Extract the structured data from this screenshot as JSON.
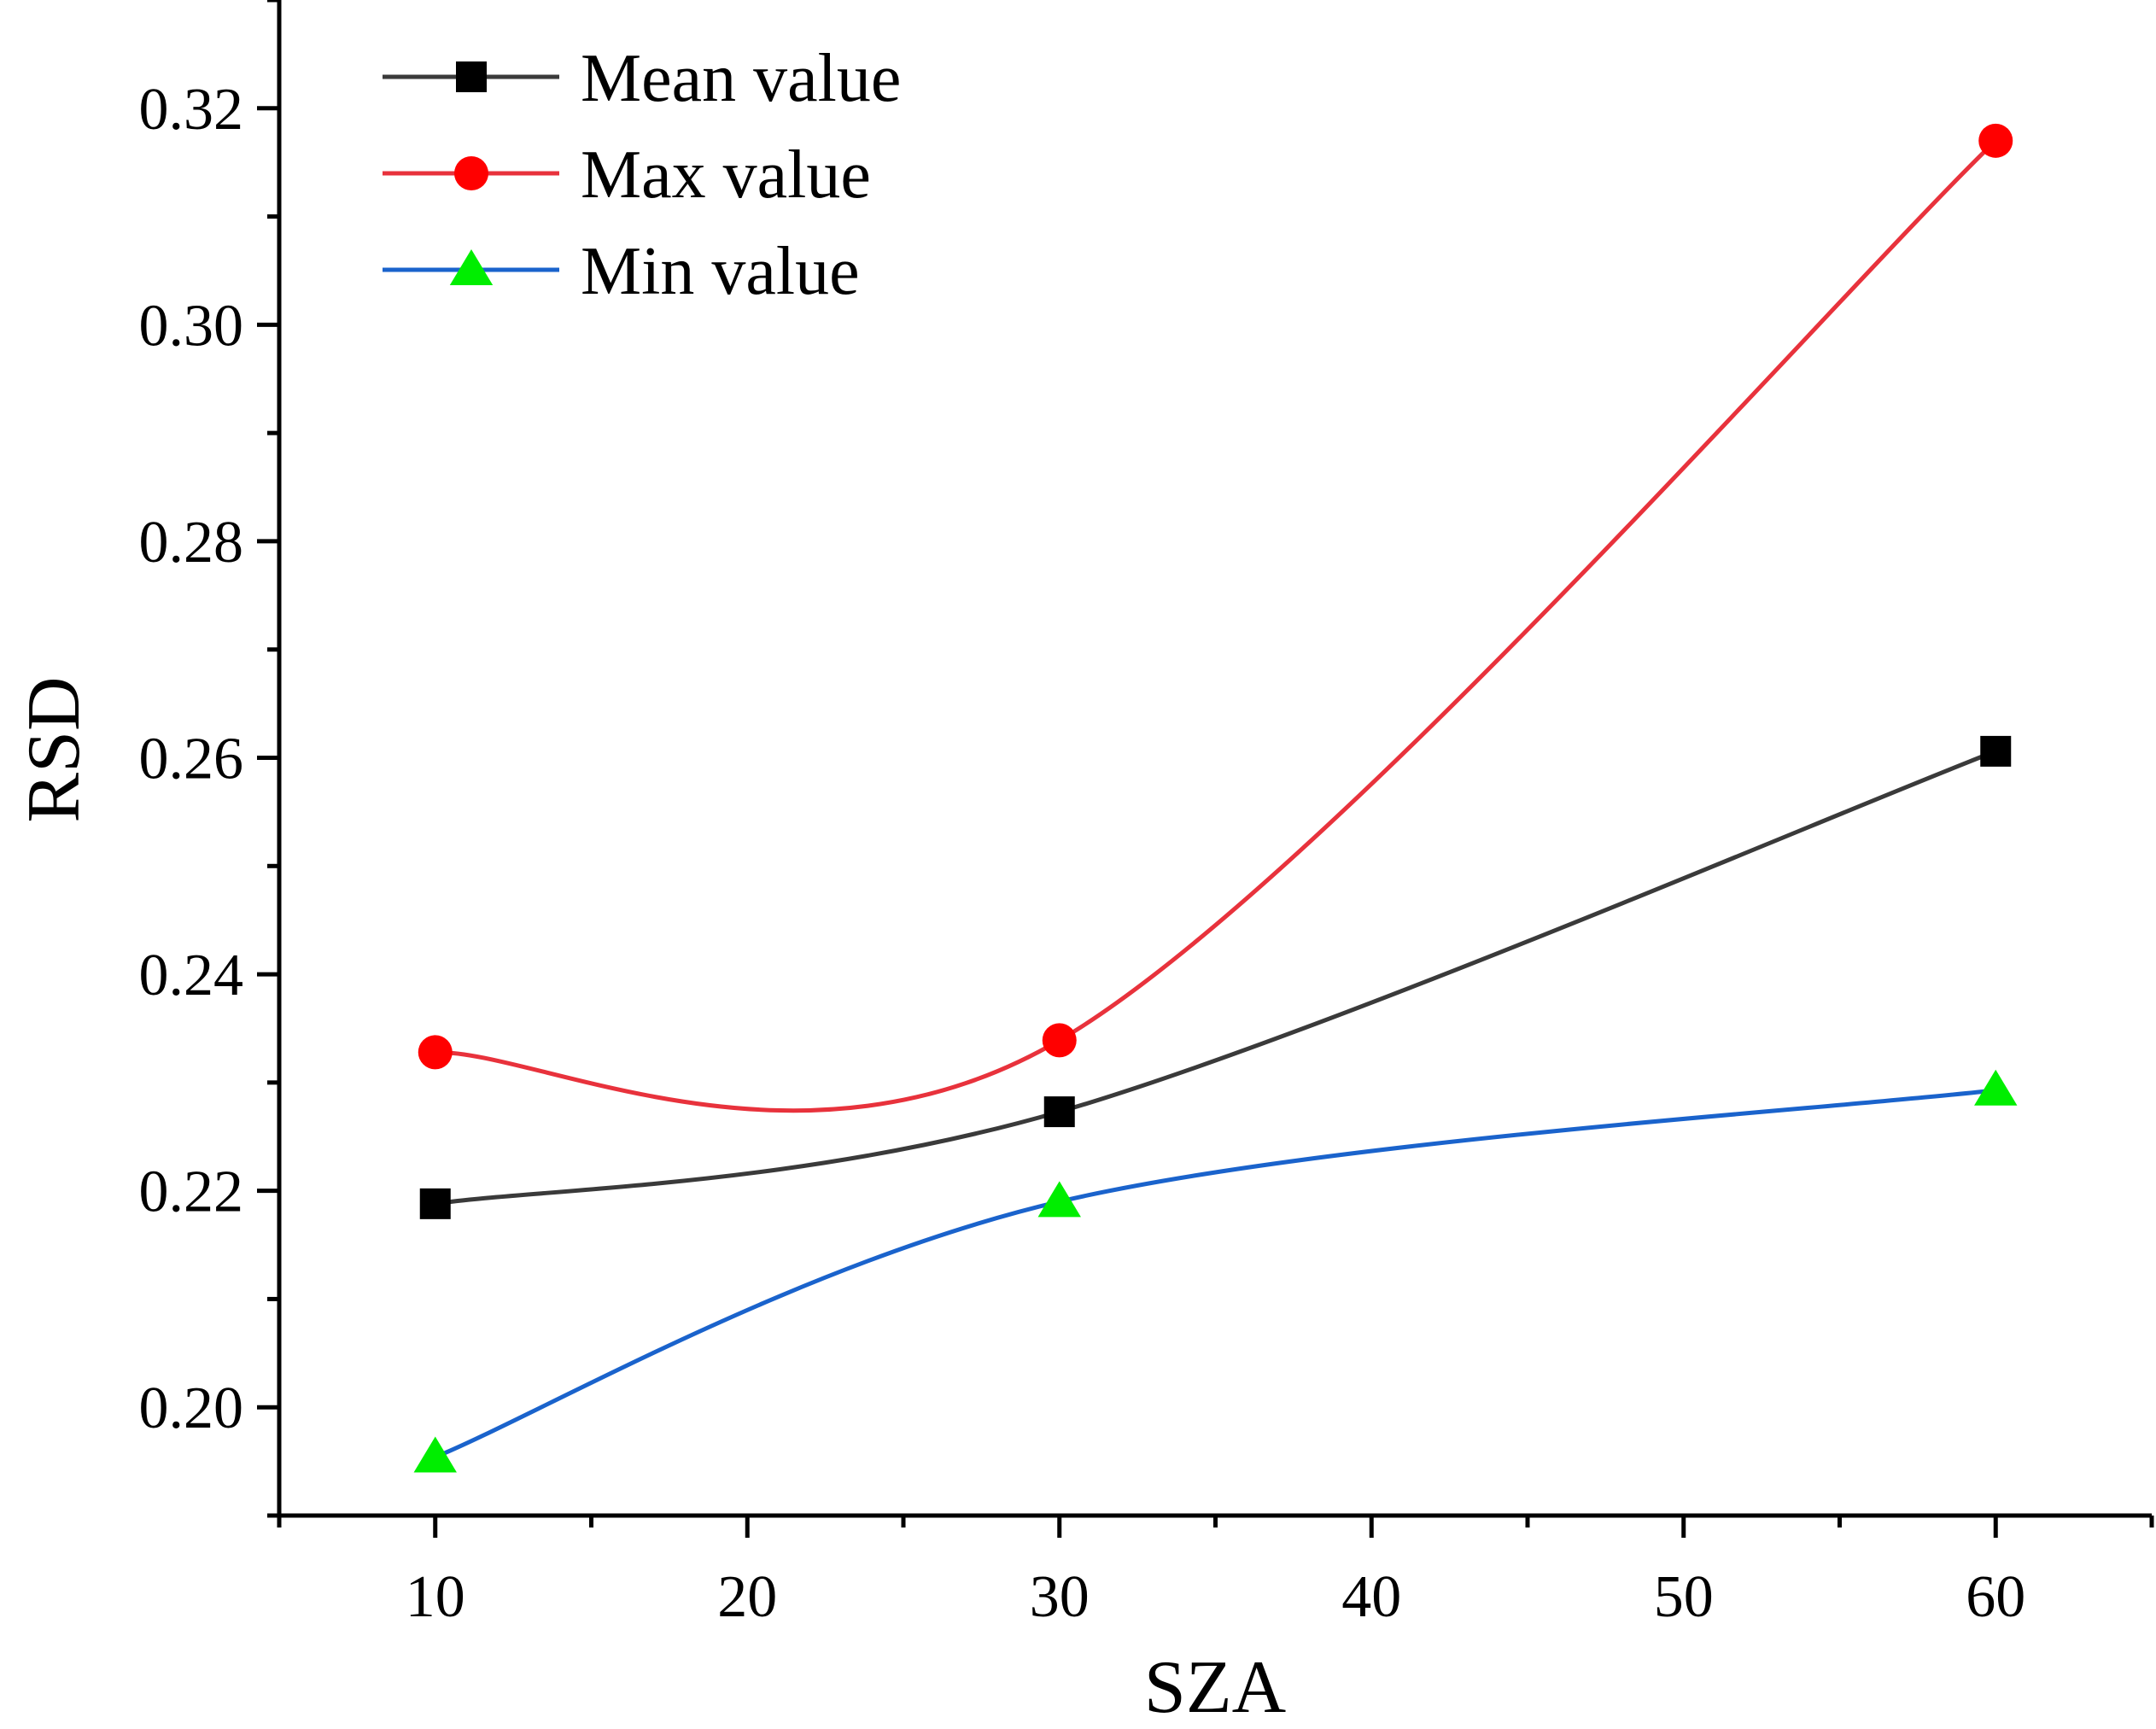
{
  "chart_data": {
    "type": "line",
    "xlabel": "SZA",
    "ylabel": "RSD",
    "xlim": [
      5,
      65
    ],
    "ylim": [
      0.19,
      0.33
    ],
    "x_ticks": [
      10,
      20,
      30,
      40,
      50,
      60
    ],
    "x_tick_labels": [
      "10",
      "20",
      "30",
      "40",
      "50",
      "60"
    ],
    "y_ticks": [
      0.2,
      0.22,
      0.24,
      0.26,
      0.28,
      0.3,
      0.32
    ],
    "y_tick_labels": [
      "0.20",
      "0.22",
      "0.24",
      "0.26",
      "0.28",
      "0.30",
      "0.32"
    ],
    "grid": false,
    "legend_position": "top-left",
    "x": [
      10,
      30,
      60
    ],
    "series": [
      {
        "name": "Mean value",
        "values": [
          0.2188,
          0.2273,
          0.2606
        ],
        "color": "#3a3a3a",
        "marker_color": "#000000",
        "marker": "square"
      },
      {
        "name": "Max value",
        "values": [
          0.2328,
          0.2339,
          0.317
        ],
        "color": "#e8323c",
        "marker_color": "#ff0000",
        "marker": "circle"
      },
      {
        "name": "Min value",
        "values": [
          0.1954,
          0.219,
          0.2293
        ],
        "color": "#1a63cc",
        "marker_color": "#00ee00",
        "marker": "triangle"
      }
    ]
  }
}
